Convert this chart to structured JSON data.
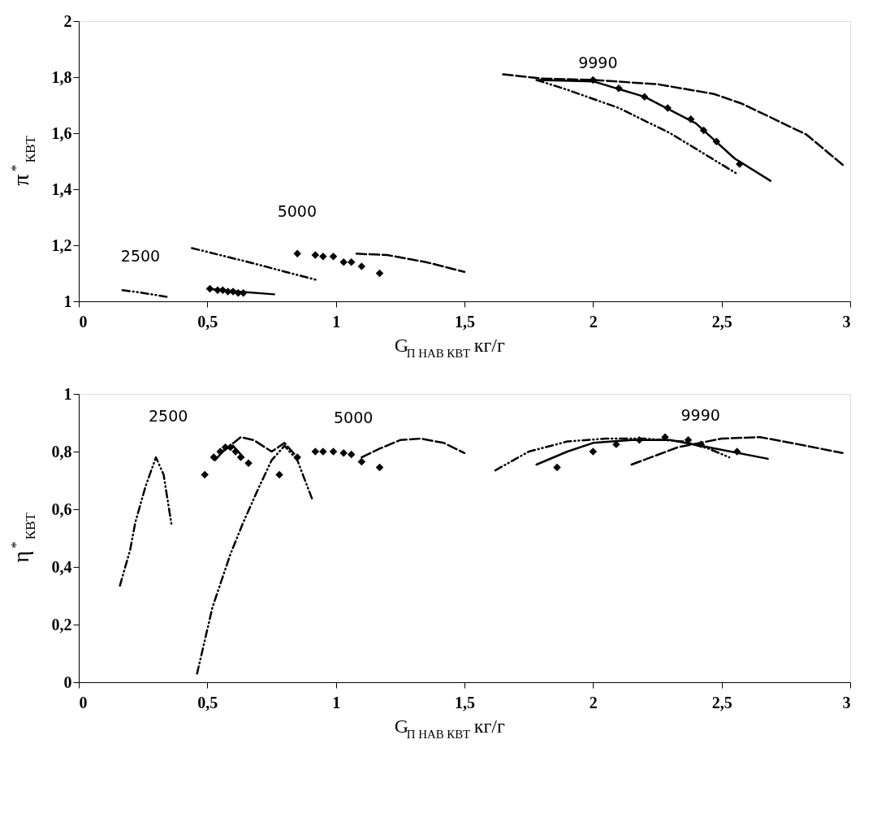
{
  "chart_data": [
    {
      "type": "line",
      "xlabel": "G$_{П НАВ КВТ}$ кг/г",
      "ylabel": "π$^{*}$$_{КВТ}$",
      "xlim": [
        0,
        3
      ],
      "xticks": [
        0,
        {
          "value": 0.5,
          "label": "0,5"
        },
        1,
        {
          "value": 1.5,
          "label": "1,5"
        },
        2,
        {
          "value": 2.5,
          "label": "2,5"
        },
        3
      ],
      "ylim": [
        1,
        2
      ],
      "yticks": [
        1,
        {
          "value": 1.2,
          "label": "1,2"
        },
        {
          "value": 1.4,
          "label": "1,4"
        },
        {
          "value": 1.6,
          "label": "1,6"
        },
        {
          "value": 1.8,
          "label": "1,8"
        },
        2
      ],
      "series": [
        {
          "line_style": "dotted",
          "color": "#000000",
          "x": [
            0.17,
            0.25,
            0.35
          ],
          "values": [
            1.04,
            1.03,
            1.015
          ]
        },
        {
          "line_style": "solid",
          "color": "#000000",
          "x": [
            0.5,
            0.62,
            0.76
          ],
          "values": [
            1.045,
            1.035,
            1.025
          ]
        },
        {
          "type": "scatter",
          "marker": "diamond",
          "color": "#000000",
          "x": [
            0.51,
            0.54,
            0.56,
            0.58,
            0.6,
            0.62,
            0.64
          ],
          "values": [
            1.045,
            1.04,
            1.04,
            1.035,
            1.035,
            1.03,
            1.03
          ]
        },
        {
          "line_style": "dotted",
          "color": "#000000",
          "x": [
            0.44,
            0.66,
            0.93
          ],
          "values": [
            1.19,
            1.14,
            1.075
          ]
        },
        {
          "type": "scatter",
          "marker": "diamond",
          "color": "#000000",
          "x": [
            0.85,
            0.92,
            0.95,
            0.99,
            1.03,
            1.06,
            1.1,
            1.17
          ],
          "values": [
            1.17,
            1.165,
            1.16,
            1.16,
            1.14,
            1.14,
            1.125,
            1.1
          ]
        },
        {
          "line_style": "dashed",
          "color": "#000000",
          "x": [
            1.08,
            1.2,
            1.35,
            1.5
          ],
          "values": [
            1.17,
            1.165,
            1.14,
            1.105
          ]
        },
        {
          "line_style": "dashed",
          "color": "#000000",
          "x": [
            1.65,
            1.8,
            2.0,
            2.25,
            2.47,
            2.58,
            2.83,
            2.98
          ],
          "values": [
            1.81,
            1.795,
            1.79,
            1.775,
            1.74,
            1.705,
            1.595,
            1.48
          ]
        },
        {
          "line_style": "solid",
          "color": "#000000",
          "x": [
            1.79,
            2.0,
            2.2,
            2.4,
            2.55,
            2.69
          ],
          "values": [
            1.79,
            1.785,
            1.73,
            1.635,
            1.51,
            1.43
          ]
        },
        {
          "line_style": "dotted",
          "color": "#000000",
          "x": [
            1.78,
            1.9,
            2.1,
            2.3,
            2.56
          ],
          "values": [
            1.79,
            1.755,
            1.69,
            1.6,
            1.455
          ]
        },
        {
          "type": "scatter",
          "marker": "diamond",
          "color": "#000000",
          "x": [
            2.0,
            2.1,
            2.2,
            2.29,
            2.38,
            2.43,
            2.48,
            2.57
          ],
          "values": [
            1.79,
            1.76,
            1.73,
            1.69,
            1.65,
            1.61,
            1.57,
            1.49
          ]
        }
      ],
      "annotations": [
        "2500",
        "5000",
        "9990"
      ]
    },
    {
      "type": "line",
      "xlabel": "G$_{П НАВ КВТ}$ кг/г",
      "ylabel": "η$^{*}$$_{КВТ}$",
      "xlim": [
        0,
        3
      ],
      "xticks": [
        0,
        {
          "value": 0.5,
          "label": "0,5"
        },
        1,
        {
          "value": 1.5,
          "label": "1,5"
        },
        2,
        {
          "value": 2.5,
          "label": "2,5"
        },
        3
      ],
      "ylim": [
        0,
        1
      ],
      "yticks": [
        0,
        {
          "value": 0.2,
          "label": "0,2"
        },
        {
          "value": 0.4,
          "label": "0,4"
        },
        {
          "value": 0.6,
          "label": "0,6"
        },
        {
          "value": 0.8,
          "label": "0,8"
        },
        1
      ],
      "series": [
        {
          "line_style": "dotted",
          "color": "#000000",
          "x": [
            0.16,
            0.2,
            0.22,
            0.26,
            0.3,
            0.33,
            0.36
          ],
          "values": [
            0.335,
            0.46,
            0.555,
            0.68,
            0.78,
            0.72,
            0.55
          ]
        },
        {
          "line_style": "solid",
          "color": "#000000",
          "x": [
            0.53,
            0.57,
            0.6,
            0.64
          ],
          "values": [
            0.77,
            0.81,
            0.82,
            0.78
          ]
        },
        {
          "line_style": "dashed",
          "color": "#000000",
          "x": [
            0.56,
            0.63,
            0.68,
            0.75,
            0.8,
            0.84
          ],
          "values": [
            0.8,
            0.85,
            0.84,
            0.8,
            0.83,
            0.79
          ]
        },
        {
          "type": "scatter",
          "marker": "diamond",
          "color": "#000000",
          "x": [
            0.49,
            0.525,
            0.55,
            0.57,
            0.59,
            0.61,
            0.63,
            0.66
          ],
          "values": [
            0.72,
            0.78,
            0.8,
            0.815,
            0.815,
            0.8,
            0.78,
            0.76
          ]
        },
        {
          "line_style": "dotted",
          "color": "#000000",
          "x": [
            0.46,
            0.52,
            0.59,
            0.64,
            0.7,
            0.75,
            0.8,
            0.85,
            0.91
          ],
          "values": [
            0.03,
            0.26,
            0.445,
            0.555,
            0.675,
            0.77,
            0.82,
            0.77,
            0.63
          ]
        },
        {
          "type": "scatter",
          "marker": "diamond",
          "color": "#000000",
          "x": [
            0.78,
            0.85,
            0.92,
            0.95,
            0.99,
            1.03,
            1.06,
            1.1,
            1.17
          ],
          "values": [
            0.72,
            0.78,
            0.8,
            0.8,
            0.8,
            0.795,
            0.79,
            0.765,
            0.745
          ]
        },
        {
          "line_style": "dashed",
          "color": "#000000",
          "x": [
            1.1,
            1.17,
            1.25,
            1.33,
            1.42,
            1.5
          ],
          "values": [
            0.78,
            0.81,
            0.84,
            0.845,
            0.83,
            0.795
          ]
        },
        {
          "line_style": "dotted",
          "color": "#000000",
          "x": [
            1.62,
            1.75,
            1.9,
            2.05,
            2.2,
            2.35,
            2.45,
            2.53
          ],
          "values": [
            0.735,
            0.8,
            0.835,
            0.845,
            0.845,
            0.835,
            0.81,
            0.78
          ]
        },
        {
          "line_style": "solid",
          "color": "#000000",
          "x": [
            1.78,
            1.9,
            2.0,
            2.15,
            2.3,
            2.45,
            2.68
          ],
          "values": [
            0.755,
            0.8,
            0.83,
            0.84,
            0.84,
            0.815,
            0.775
          ]
        },
        {
          "line_style": "dashed",
          "color": "#000000",
          "x": [
            2.15,
            2.33,
            2.5,
            2.65,
            2.8,
            2.97
          ],
          "values": [
            0.755,
            0.815,
            0.845,
            0.85,
            0.825,
            0.795
          ]
        },
        {
          "type": "scatter",
          "marker": "diamond",
          "color": "#000000",
          "x": [
            1.86,
            2.0,
            2.09,
            2.18,
            2.28,
            2.37,
            2.42,
            2.56
          ],
          "values": [
            0.745,
            0.8,
            0.825,
            0.84,
            0.85,
            0.84,
            0.825,
            0.8
          ]
        }
      ],
      "annotations": [
        "2500",
        "5000",
        "9990"
      ]
    }
  ]
}
